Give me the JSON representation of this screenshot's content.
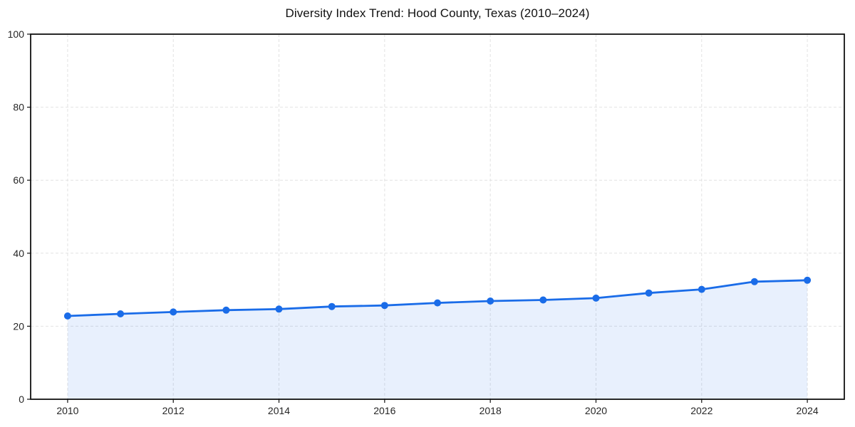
{
  "chart_data": {
    "type": "line",
    "title": "Diversity Index Trend: Hood County, Texas (2010–2024)",
    "xlabel": "",
    "ylabel": "",
    "x": [
      2010,
      2011,
      2012,
      2013,
      2014,
      2015,
      2016,
      2017,
      2018,
      2019,
      2020,
      2021,
      2022,
      2023,
      2024
    ],
    "series": [
      {
        "name": "Diversity Index",
        "values": [
          22.8,
          23.4,
          23.9,
          24.4,
          24.7,
          25.4,
          25.7,
          26.4,
          26.9,
          27.2,
          27.7,
          29.1,
          30.1,
          32.2,
          32.6
        ]
      }
    ],
    "xticks": [
      2010,
      2012,
      2014,
      2016,
      2018,
      2020,
      2022,
      2024
    ],
    "yticks": [
      0,
      20,
      40,
      60,
      80,
      100
    ],
    "xlim": [
      2009.3,
      2024.7
    ],
    "ylim": [
      0,
      100
    ],
    "grid": true,
    "grid_style": "dashed",
    "legend": false,
    "marker": "circle",
    "area_fill": true,
    "colors": {
      "line": "#1a6ce8",
      "marker": "#1a6ce8",
      "area": "rgba(26,108,232,0.10)",
      "grid": "#e2e2e2",
      "axis": "#111111",
      "tick_label": "#262626",
      "title": "#111111",
      "background": "#ffffff"
    }
  }
}
